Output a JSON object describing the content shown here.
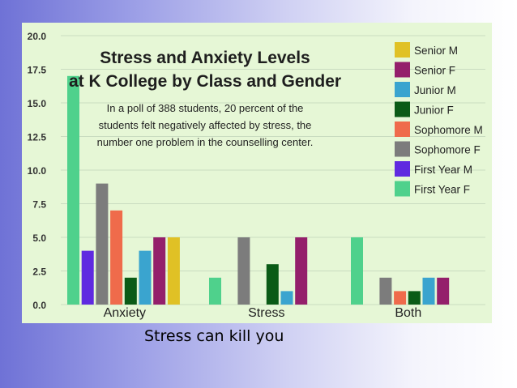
{
  "caption": "Stress can kill you",
  "chart_data": {
    "type": "bar",
    "title": "Stress and Anxiety Levels at K College by Class and Gender",
    "title_lines": [
      "Stress and Anxiety Levels",
      "at K College by Class and Gender"
    ],
    "subtitle": "In a poll of 388 students, 20 percent of the students felt negatively affected by stress, the number one problem in the counselling center.",
    "subtitle_lines": [
      "In a poll of 388 students, 20 percent of the",
      "students felt negatively affected by stress, the",
      "number one problem in the counselling center."
    ],
    "xlabel": "",
    "ylabel": "",
    "ylim": [
      0,
      20
    ],
    "yticks": [
      "0.0",
      "2.5",
      "5.0",
      "7.5",
      "10.0",
      "12.5",
      "15.0",
      "17.5",
      "20.0"
    ],
    "grid": true,
    "legend_position": "top-right",
    "categories": [
      "Anxiety",
      "Stress",
      "Both"
    ],
    "bar_order": [
      "First Year F",
      "First Year M",
      "Sophomore F",
      "Sophomore M",
      "Junior F",
      "Junior M",
      "Senior F",
      "Senior M"
    ],
    "series": [
      {
        "name": "Senior M",
        "color": "#e0c125",
        "values": [
          5,
          0,
          0
        ]
      },
      {
        "name": "Senior F",
        "color": "#941f6b",
        "values": [
          5,
          5,
          2
        ]
      },
      {
        "name": "Junior M",
        "color": "#3aa4cf",
        "values": [
          4,
          1,
          2
        ]
      },
      {
        "name": "Junior F",
        "color": "#0a5b16",
        "values": [
          2,
          3,
          1
        ]
      },
      {
        "name": "Sophomore M",
        "color": "#ef6b4b",
        "values": [
          7,
          0,
          1
        ]
      },
      {
        "name": "Sophomore F",
        "color": "#7c7c7c",
        "values": [
          9,
          5,
          2
        ]
      },
      {
        "name": "First Year M",
        "color": "#5f2ae0",
        "values": [
          4,
          0,
          0
        ]
      },
      {
        "name": "First Year F",
        "color": "#4fd18c",
        "values": [
          17,
          2,
          5
        ]
      }
    ]
  }
}
